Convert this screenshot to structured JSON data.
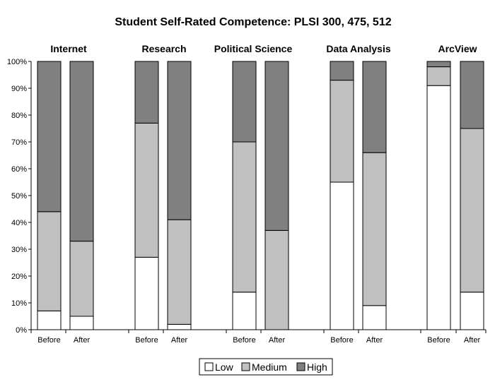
{
  "chart_data": {
    "type": "bar",
    "stacked": true,
    "percent": true,
    "title": "Student Self-Rated Competence: PLSI 300, 475, 512",
    "groups": [
      "Internet",
      "Research",
      "Political Science",
      "Data Analysis",
      "ArcView"
    ],
    "categories": [
      "Before",
      "After",
      "Before",
      "After",
      "Before",
      "After",
      "Before",
      "After",
      "Before",
      "After"
    ],
    "series": [
      {
        "name": "Low",
        "color": "#ffffff",
        "values": [
          7,
          5,
          27,
          2,
          14,
          0,
          55,
          9,
          91,
          14
        ]
      },
      {
        "name": "Medium",
        "color": "#c0c0c0",
        "values": [
          37,
          28,
          50,
          39,
          56,
          37,
          38,
          57,
          7,
          61
        ]
      },
      {
        "name": "High",
        "color": "#808080",
        "values": [
          56,
          67,
          23,
          59,
          30,
          63,
          7,
          34,
          2,
          25
        ]
      }
    ],
    "yticks": [
      "0%",
      "10%",
      "20%",
      "30%",
      "40%",
      "50%",
      "60%",
      "70%",
      "80%",
      "90%",
      "100%"
    ],
    "ylim": [
      0,
      100
    ],
    "legend_position": "bottom-center",
    "xlabel": "",
    "ylabel": ""
  }
}
